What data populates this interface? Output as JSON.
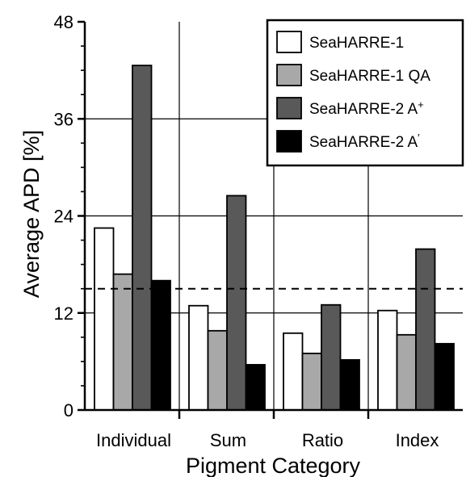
{
  "chart_data": {
    "type": "bar",
    "xlabel": "Pigment Category",
    "ylabel": "Average APD [%]",
    "ylim": [
      0,
      48
    ],
    "yticks": [
      0,
      12,
      24,
      36,
      48
    ],
    "categories": [
      "Individual",
      "Sum",
      "Ratio",
      "Index"
    ],
    "grid": true,
    "reference_line": {
      "value": 15,
      "style": "dashed"
    },
    "legend": {
      "placement": "top-right"
    },
    "series": [
      {
        "name": "SeaHARRE-1",
        "color": "#ffffff",
        "values": [
          22.5,
          12.9,
          9.5,
          12.3
        ]
      },
      {
        "name": "SeaHARRE-1 QA",
        "color": "#a8a8a8",
        "values": [
          16.8,
          9.8,
          7.0,
          9.3
        ]
      },
      {
        "name": "SeaHARRE-2 A",
        "name_superscript": "+",
        "color": "#595959",
        "values": [
          42.6,
          26.5,
          13.0,
          19.9
        ]
      },
      {
        "name": "SeaHARRE-2 A",
        "name_superscript": "′",
        "color": "#000000",
        "values": [
          16.0,
          5.6,
          6.2,
          8.2
        ]
      }
    ]
  }
}
